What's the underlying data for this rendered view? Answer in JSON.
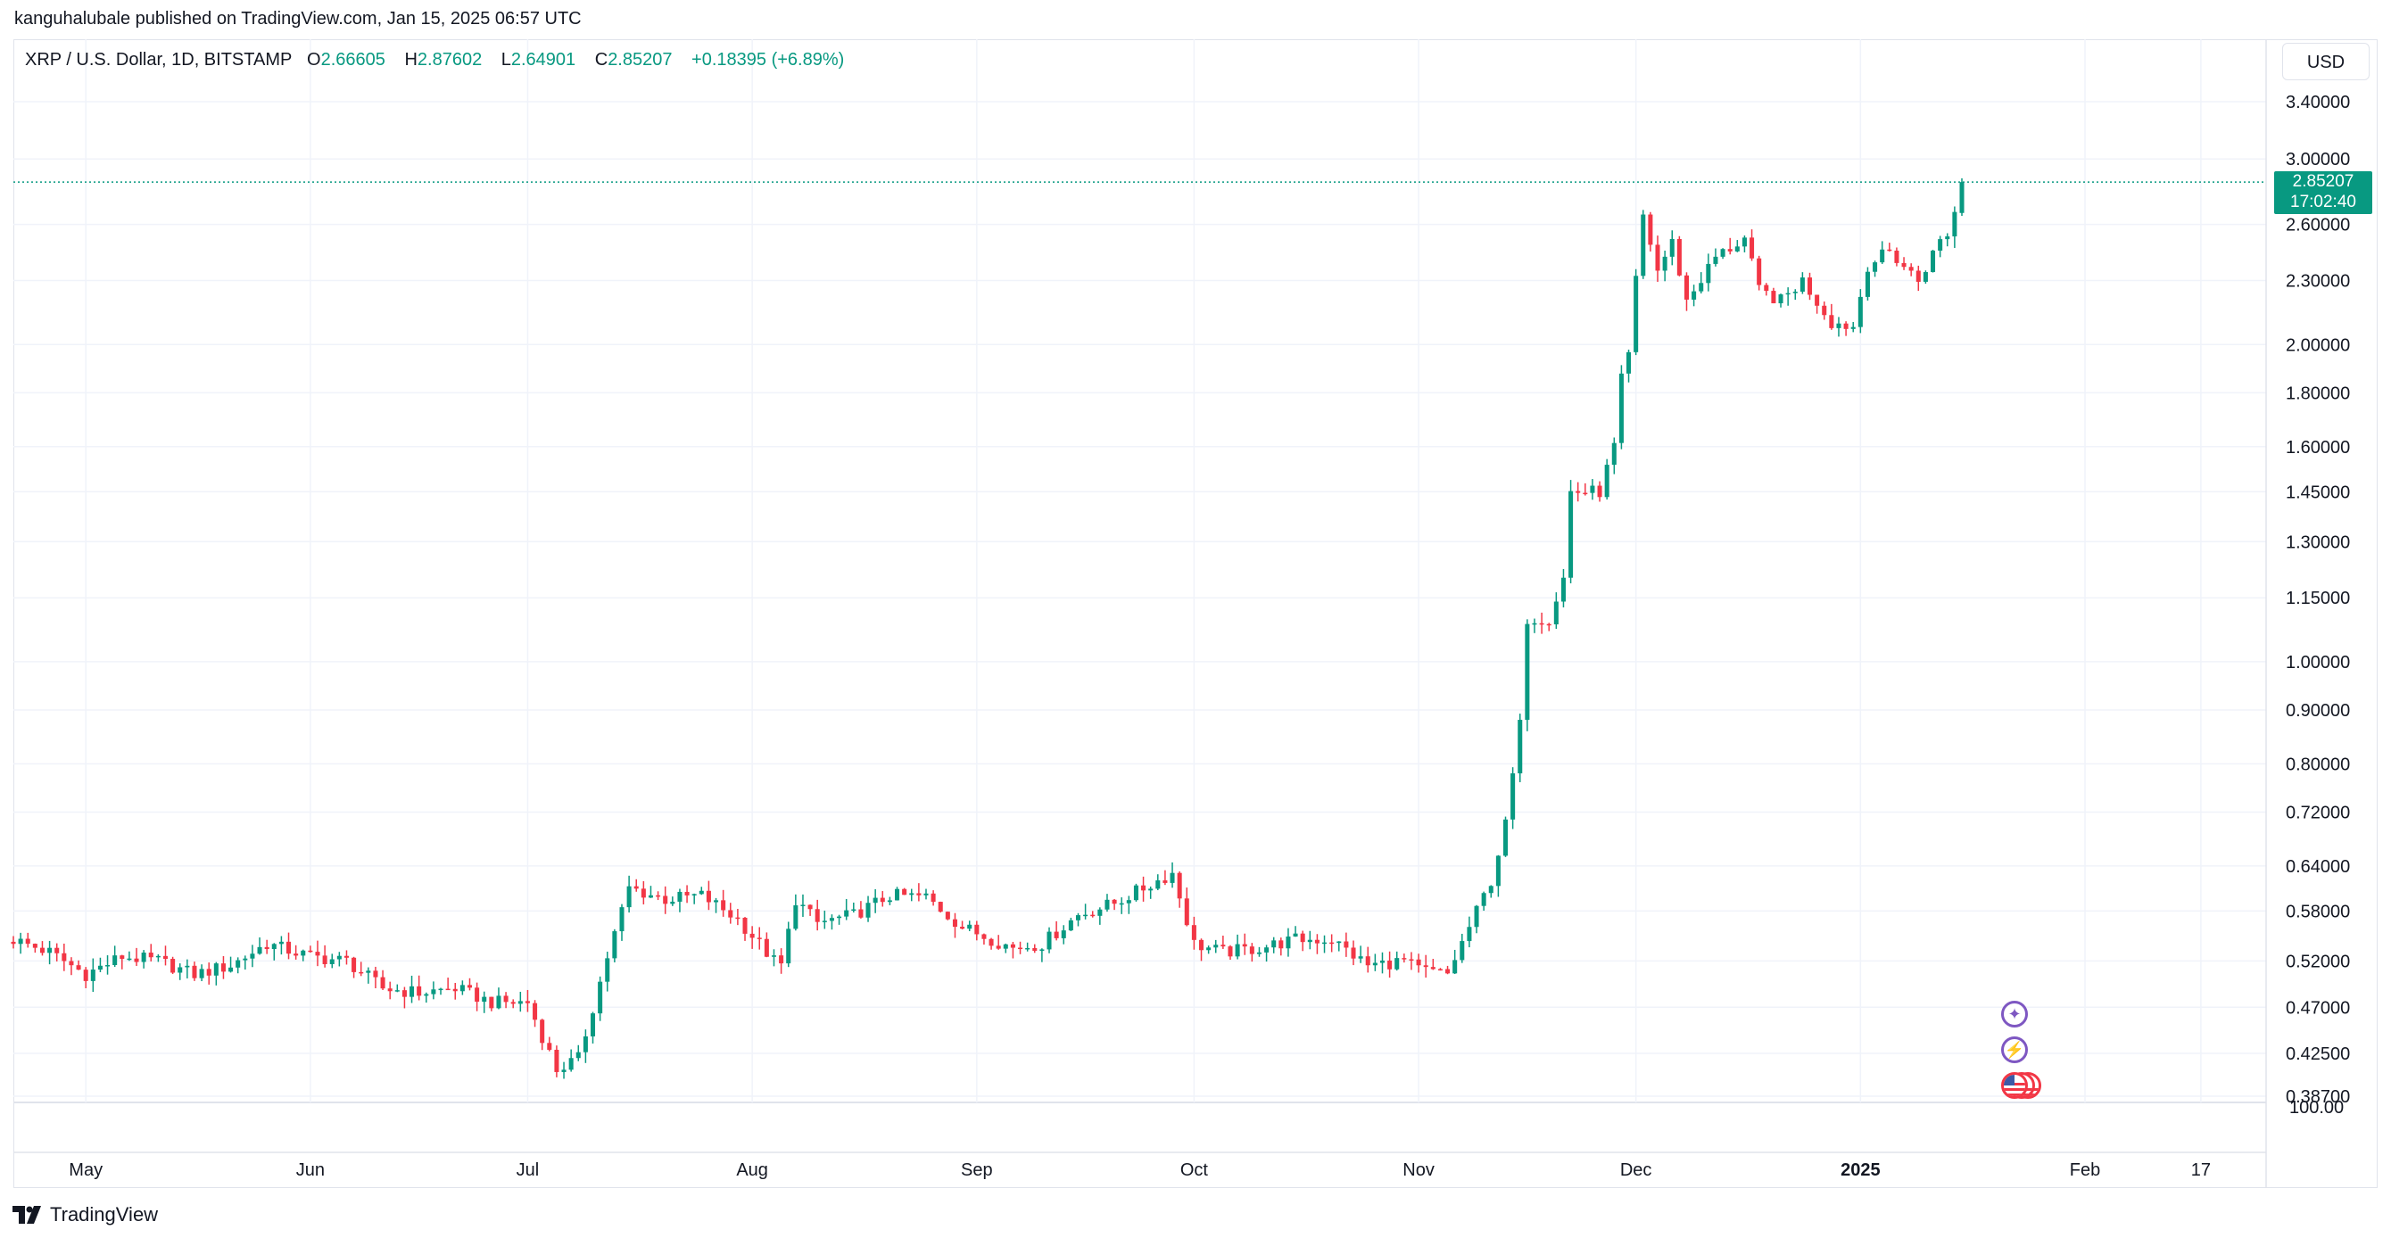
{
  "header": {
    "published": "kanguhalubale published on TradingView.com, Jan 15, 2025 06:57 UTC"
  },
  "legend": {
    "symbol": "XRP / U.S. Dollar, 1D, BITSTAMP",
    "open_label": "O",
    "open": "2.66605",
    "high_label": "H",
    "high": "2.87602",
    "low_label": "L",
    "low": "2.64901",
    "close_label": "C",
    "close": "2.85207",
    "change": "+0.18395 (+6.89%)"
  },
  "currency": "USD",
  "last_price": {
    "value": "2.85207",
    "countdown": "17:02:40",
    "color": "#089981"
  },
  "footer": {
    "brand": "TradingView"
  },
  "colors": {
    "up": "#089981",
    "down": "#f23645",
    "grid": "#f0f3fa",
    "border": "#e0e3eb",
    "event": "#7e57c2"
  },
  "chart_data": {
    "type": "candlestick",
    "scale": "log",
    "y_ticks": [
      "3.40000",
      "3.00000",
      "2.60000",
      "2.30000",
      "2.00000",
      "1.80000",
      "1.60000",
      "1.45000",
      "1.30000",
      "1.15000",
      "1.00000",
      "0.90000",
      "0.80000",
      "0.72000",
      "0.64000",
      "0.58000",
      "0.52000",
      "0.47000",
      "0.42500",
      "0.38700"
    ],
    "pane_scale_label": "100.00",
    "x_ticks": [
      "May",
      "Jun",
      "Jul",
      "Aug",
      "Sep",
      "Oct",
      "Nov",
      "Dec",
      "2025",
      "Feb",
      "17"
    ],
    "x_tick_dates": [
      "2024-05-01",
      "2024-06-01",
      "2024-07-01",
      "2024-08-01",
      "2024-09-01",
      "2024-10-01",
      "2024-11-01",
      "2024-12-01",
      "2025-01-01",
      "2025-02-01",
      "2025-02-17"
    ],
    "x_range": [
      "2024-04-21",
      "2025-02-26"
    ],
    "grid": true,
    "anchors": [
      [
        "2024-04-21",
        0.545
      ],
      [
        "2024-04-26",
        0.53
      ],
      [
        "2024-05-01",
        0.505
      ],
      [
        "2024-05-06",
        0.525
      ],
      [
        "2024-05-11",
        0.52
      ],
      [
        "2024-05-16",
        0.505
      ],
      [
        "2024-05-21",
        0.515
      ],
      [
        "2024-05-26",
        0.54
      ],
      [
        "2024-06-01",
        0.525
      ],
      [
        "2024-06-06",
        0.52
      ],
      [
        "2024-06-11",
        0.49
      ],
      [
        "2024-06-16",
        0.485
      ],
      [
        "2024-06-21",
        0.49
      ],
      [
        "2024-06-26",
        0.475
      ],
      [
        "2024-07-01",
        0.475
      ],
      [
        "2024-07-05",
        0.41
      ],
      [
        "2024-07-08",
        0.42
      ],
      [
        "2024-07-12",
        0.525
      ],
      [
        "2024-07-15",
        0.61
      ],
      [
        "2024-07-20",
        0.595
      ],
      [
        "2024-07-25",
        0.6
      ],
      [
        "2024-07-30",
        0.57
      ],
      [
        "2024-08-04",
        0.52
      ],
      [
        "2024-08-05",
        0.515
      ],
      [
        "2024-08-07",
        0.595
      ],
      [
        "2024-08-10",
        0.565
      ],
      [
        "2024-08-15",
        0.575
      ],
      [
        "2024-08-20",
        0.6
      ],
      [
        "2024-08-25",
        0.598
      ],
      [
        "2024-08-30",
        0.56
      ],
      [
        "2024-09-06",
        0.535
      ],
      [
        "2024-09-10",
        0.54
      ],
      [
        "2024-09-15",
        0.575
      ],
      [
        "2024-09-20",
        0.59
      ],
      [
        "2024-09-28",
        0.63
      ],
      [
        "2024-10-01",
        0.54
      ],
      [
        "2024-10-05",
        0.53
      ],
      [
        "2024-10-10",
        0.535
      ],
      [
        "2024-10-15",
        0.545
      ],
      [
        "2024-10-20",
        0.545
      ],
      [
        "2024-10-25",
        0.515
      ],
      [
        "2024-10-30",
        0.52
      ],
      [
        "2024-11-01",
        0.51
      ],
      [
        "2024-11-05",
        0.505
      ],
      [
        "2024-11-08",
        0.56
      ],
      [
        "2024-11-11",
        0.62
      ],
      [
        "2024-11-13",
        0.7
      ],
      [
        "2024-11-15",
        0.87
      ],
      [
        "2024-11-16",
        1.1
      ],
      [
        "2024-11-19",
        1.1
      ],
      [
        "2024-11-21",
        1.2
      ],
      [
        "2024-11-22",
        1.45
      ],
      [
        "2024-11-24",
        1.45
      ],
      [
        "2024-11-26",
        1.45
      ],
      [
        "2024-11-28",
        1.6
      ],
      [
        "2024-11-29",
        1.85
      ],
      [
        "2024-11-30",
        1.95
      ],
      [
        "2024-12-01",
        2.3
      ],
      [
        "2024-12-02",
        2.65
      ],
      [
        "2024-12-04",
        2.35
      ],
      [
        "2024-12-06",
        2.5
      ],
      [
        "2024-12-08",
        2.2
      ],
      [
        "2024-12-12",
        2.42
      ],
      [
        "2024-12-16",
        2.52
      ],
      [
        "2024-12-18",
        2.25
      ],
      [
        "2024-12-21",
        2.2
      ],
      [
        "2024-12-24",
        2.3
      ],
      [
        "2024-12-28",
        2.1
      ],
      [
        "2024-12-31",
        2.08
      ],
      [
        "2025-01-02",
        2.38
      ],
      [
        "2025-01-05",
        2.45
      ],
      [
        "2025-01-09",
        2.3
      ],
      [
        "2025-01-12",
        2.51
      ],
      [
        "2025-01-13",
        2.55
      ],
      [
        "2025-01-14",
        2.67
      ],
      [
        "2025-01-15",
        2.85207
      ]
    ]
  }
}
